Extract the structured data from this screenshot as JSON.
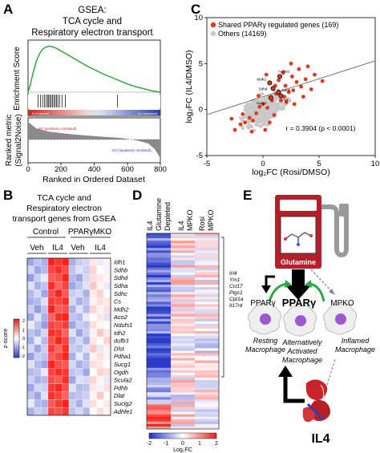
{
  "panels": {
    "A": {
      "letter": "A",
      "title_lines": [
        "GSEA:",
        "TCA cycle and",
        "Respiratory electron transport"
      ],
      "enrichment_ylabel": "Enrichment Score",
      "ranked_ylabel_lines": [
        "Ranked metric",
        "(Signal2Noise)"
      ],
      "xlabel": "Ranked in Ordered Dataset",
      "xticks": [
        "0",
        "200",
        "400",
        "600",
        "800"
      ],
      "bar_left_label": "IL4 induced",
      "bar_right_label": "IL4 repressed",
      "wt_label": "WT (positively correlated)",
      "ko_label": "KO (negatively correlated)"
    },
    "B": {
      "letter": "B",
      "title_lines": [
        "TCA cycle and",
        "Respiratory electron",
        "transport genes from GSEA"
      ],
      "group_control": "Control",
      "group_ko": "PPARγMKO",
      "col_labels": [
        "Veh",
        "IL4",
        "Veh",
        "IL4"
      ],
      "genes": [
        "Idh1",
        "Sdhb",
        "Sdhd",
        "Sdha",
        "Sdhc",
        "Cs",
        "Mdh2",
        "Aco2",
        "Ndufs1",
        "Idh2",
        "dufb3",
        "Dlst",
        "Pdha1",
        "Sucg1",
        "Ogdh",
        "Scula2",
        "Pdhb",
        "Dlat",
        "Suclg2",
        "Adhfe1"
      ],
      "zscore_label": "z-score",
      "zscore_ticks": [
        "2",
        "1",
        "0",
        "-1",
        "-2"
      ]
    },
    "C": {
      "letter": "C",
      "xlabel": "log₂FC (Rosi/DMSO)",
      "ylabel": "log₂FC (IL4/DMSO)",
      "legend_shared": "Shared PPARγ regulated genes (169)",
      "legend_others": "Others (14169)",
      "annotation": "r = 0.3904 (p < 0.0001)",
      "gene_labels": [
        "Adhfe1",
        "Mdh2",
        "Sdhd",
        "Sdhb",
        "Sucg1",
        "Idh1"
      ],
      "xticks": [
        "-5",
        "0",
        "5",
        "10"
      ],
      "yticks": [
        "-5",
        "0",
        "5",
        "10"
      ]
    },
    "D": {
      "letter": "D",
      "col_labels": [
        [
          "IL4",
          "Glutamine",
          "Depleted"
        ],
        [
          "IL4",
          "MPKO"
        ],
        [
          "Rosi",
          "MPKO"
        ]
      ],
      "genes": [
        "Irf4",
        "Ym1",
        "Ccl17",
        "Ptgs1",
        "Cpt1a",
        "Il17rd"
      ],
      "colorbar_ticks": [
        "-2",
        "-1",
        "0",
        "1",
        "2"
      ],
      "colorbar_label": "Log₂FC"
    },
    "E": {
      "letter": "E",
      "glutamine_label": "Glutamine",
      "ppar_center": "PPARγ",
      "ppar_left": "PPARγ",
      "mpko": "MPKO",
      "resting_lines": [
        "Resting",
        "Macrophage"
      ],
      "alt_lines": [
        "Alternatively",
        "Activated",
        "Macrophage"
      ],
      "inflamed_lines": [
        "Inflamed",
        "Macrophage"
      ],
      "il4_label": "IL4"
    }
  },
  "chart_data": [
    {
      "type": "line",
      "title": "GSEA: TCA cycle and Respiratory electron transport",
      "xlabel": "Ranked in Ordered Dataset",
      "ylabel": "Enrichment Score",
      "xlim": [
        0,
        800
      ],
      "x": [
        0,
        15,
        30,
        50,
        70,
        90,
        110,
        130,
        150,
        170,
        200,
        250,
        300,
        350,
        400,
        450,
        500,
        550,
        600,
        650,
        700,
        750,
        800
      ],
      "y": [
        0,
        0.12,
        0.28,
        0.45,
        0.56,
        0.63,
        0.66,
        0.67,
        0.66,
        0.64,
        0.6,
        0.53,
        0.46,
        0.39,
        0.33,
        0.27,
        0.22,
        0.17,
        0.12,
        0.08,
        0.05,
        0.02,
        0
      ],
      "hits": [
        60,
        75,
        88,
        100,
        110,
        118,
        125,
        132,
        140,
        148,
        156,
        164,
        172,
        180,
        190,
        205,
        225,
        540
      ]
    },
    {
      "type": "heatmap",
      "title": "TCA cycle and Respiratory electron transport genes from GSEA",
      "groups": [
        "Control",
        "PPARγMKO"
      ],
      "columns": [
        "Veh",
        "Veh",
        "Veh",
        "IL4",
        "IL4",
        "IL4",
        "Veh",
        "Veh",
        "Veh",
        "IL4",
        "IL4",
        "IL4"
      ],
      "rows": [
        "Idh1",
        "Sdhb",
        "Sdhd",
        "Sdha",
        "Sdhc",
        "Cs",
        "Mdh2",
        "Aco2",
        "Ndufs1",
        "Idh2",
        "dufb3",
        "Dlst",
        "Pdha1",
        "Sucg1",
        "Ogdh",
        "Scula2",
        "Pdhb",
        "Dlat",
        "Suclg2",
        "Adhfe1"
      ],
      "values": [
        [
          -0.9,
          -0.6,
          -0.8,
          2.0,
          1.8,
          2.1,
          -0.8,
          -0.5,
          -0.4,
          0.2,
          -0.2,
          0.1
        ],
        [
          -0.4,
          -0.9,
          -0.7,
          1.7,
          1.9,
          1.6,
          -0.6,
          -0.3,
          -0.5,
          0.4,
          0.0,
          -0.1
        ],
        [
          -1.0,
          -0.5,
          -0.2,
          1.5,
          1.6,
          2.0,
          -0.7,
          -0.9,
          -0.4,
          0.3,
          0.2,
          0.1
        ],
        [
          -0.3,
          -0.8,
          -0.6,
          1.9,
          1.4,
          1.7,
          -0.9,
          -0.6,
          -0.3,
          0.5,
          0.1,
          -0.2
        ],
        [
          -0.7,
          -0.4,
          -0.9,
          1.6,
          2.0,
          1.5,
          -0.5,
          -0.4,
          -0.8,
          0.2,
          0.4,
          0.0
        ],
        [
          -0.8,
          -0.7,
          -0.3,
          1.8,
          1.7,
          1.9,
          -0.4,
          -0.8,
          -0.6,
          0.1,
          0.3,
          0.2
        ],
        [
          -0.5,
          -1.0,
          -0.6,
          2.1,
          1.5,
          1.6,
          -0.8,
          -0.3,
          -0.7,
          0.4,
          -0.1,
          0.3
        ],
        [
          -0.9,
          -0.3,
          -0.8,
          1.4,
          1.9,
          2.0,
          -0.6,
          -0.7,
          -0.2,
          0.0,
          0.2,
          -0.3
        ],
        [
          -0.2,
          -0.6,
          -1.0,
          1.7,
          1.6,
          1.8,
          -0.9,
          -0.5,
          -0.6,
          0.3,
          0.1,
          0.0
        ],
        [
          -0.6,
          -0.8,
          -0.4,
          1.9,
          1.8,
          1.4,
          -0.3,
          -0.9,
          -0.5,
          -0.1,
          0.5,
          0.2
        ],
        [
          -0.8,
          -0.2,
          -0.7,
          1.6,
          2.1,
          1.7,
          -0.7,
          -0.4,
          -0.8,
          0.2,
          0.0,
          0.4
        ],
        [
          -0.4,
          -0.9,
          -0.5,
          1.8,
          1.4,
          1.9,
          -0.5,
          -0.6,
          -0.3,
          0.5,
          -0.2,
          0.1
        ],
        [
          -1.0,
          -0.5,
          -0.6,
          1.5,
          1.7,
          2.0,
          -0.8,
          -0.2,
          -0.7,
          0.1,
          0.3,
          -0.1
        ],
        [
          -0.3,
          -0.7,
          -0.9,
          2.0,
          1.6,
          1.5,
          -0.4,
          -0.8,
          -0.6,
          0.3,
          0.2,
          0.0
        ],
        [
          -0.7,
          -0.6,
          -0.2,
          1.7,
          1.9,
          1.8,
          -0.6,
          -0.5,
          -0.9,
          0.0,
          0.4,
          0.3
        ],
        [
          -0.5,
          -0.8,
          -0.7,
          1.6,
          1.5,
          1.9,
          -0.9,
          -0.3,
          -0.4,
          0.4,
          0.1,
          -0.2
        ],
        [
          -0.9,
          -0.4,
          -0.5,
          1.8,
          2.0,
          1.6,
          -0.3,
          -0.7,
          -0.6,
          0.2,
          -0.1,
          0.3
        ],
        [
          -0.6,
          -0.9,
          -0.3,
          1.9,
          1.7,
          1.4,
          -0.7,
          -0.6,
          -0.5,
          0.1,
          0.5,
          0.0
        ],
        [
          -0.2,
          -0.7,
          -0.8,
          1.5,
          1.8,
          2.0,
          -0.5,
          -0.8,
          -0.3,
          0.3,
          0.0,
          0.2
        ],
        [
          -0.8,
          -0.5,
          -0.6,
          1.7,
          1.6,
          1.8,
          -0.6,
          -0.4,
          -0.7,
          0.0,
          0.3,
          0.1
        ]
      ],
      "zlim": [
        -2,
        2
      ]
    },
    {
      "type": "scatter",
      "xlabel": "log₂FC (Rosi/DMSO)",
      "ylabel": "log₂FC (IL4/DMSO)",
      "xlim": [
        -5,
        10
      ],
      "ylim": [
        -5,
        10
      ],
      "series": [
        {
          "name": "Shared PPARγ regulated genes (169)",
          "color": "#e03a1e",
          "points": [
            [
              -2.5,
              -2.2
            ],
            [
              -2.0,
              -1.6
            ],
            [
              -1.6,
              -1.4
            ],
            [
              -1.2,
              -0.9
            ],
            [
              -0.9,
              -1.2
            ],
            [
              -0.6,
              -0.4
            ],
            [
              -0.3,
              0.3
            ],
            [
              0.0,
              0.6
            ],
            [
              0.4,
              0.2
            ],
            [
              0.8,
              1.0
            ],
            [
              1.2,
              1.7
            ],
            [
              1.6,
              1.0
            ],
            [
              2.0,
              2.6
            ],
            [
              2.3,
              1.9
            ],
            [
              2.7,
              2.1
            ],
            [
              3.0,
              3.0
            ],
            [
              3.4,
              2.5
            ],
            [
              3.8,
              3.3
            ],
            [
              4.3,
              2.2
            ],
            [
              4.6,
              3.8
            ],
            [
              5.3,
              3.1
            ],
            [
              2.1,
              0.8
            ],
            [
              1.0,
              -0.6
            ],
            [
              0.6,
              -1.4
            ],
            [
              -1.0,
              -2.4
            ],
            [
              -1.8,
              -0.5
            ],
            [
              1.4,
              3.2
            ],
            [
              1.8,
              4.0
            ],
            [
              2.5,
              5.0
            ],
            [
              3.2,
              4.4
            ],
            [
              0.3,
              3.8
            ],
            [
              -0.4,
              1.5
            ],
            [
              2.8,
              0.6
            ],
            [
              3.6,
              1.4
            ],
            [
              4.0,
              4.7
            ],
            [
              1.1,
              2.6
            ],
            [
              0.2,
              -2.2
            ],
            [
              -2.8,
              -1.0
            ],
            [
              2.6,
              3.6
            ],
            [
              1.9,
              1.4
            ]
          ]
        },
        {
          "name": "Others (14169)",
          "color": "#c9c9c9"
        }
      ],
      "fit_line": {
        "x": [
          -5,
          10
        ],
        "y": [
          -0.55,
          5.3
        ]
      },
      "highlighted": [
        {
          "label": "Adhfe1",
          "x": 1.5,
          "y": 3.6
        },
        {
          "label": "Mdh2",
          "x": 0.6,
          "y": 2.9
        },
        {
          "label": "Sdhd",
          "x": 0.9,
          "y": 2.3
        },
        {
          "label": "Sdhb",
          "x": 1.4,
          "y": 1.9
        },
        {
          "label": "Sucg1",
          "x": 0.7,
          "y": 1.3
        },
        {
          "label": "Idh1",
          "x": 1.6,
          "y": 1.5
        }
      ],
      "annotation": "r = 0.3904 (p < 0.0001)"
    },
    {
      "type": "heatmap",
      "columns": [
        "IL4 Glutamine Depleted",
        "IL4 MPKO",
        "Rosi MPKO"
      ],
      "row_blocks": [
        {
          "rows": 62,
          "col_values": [
            -1.5,
            0.2,
            0.0
          ]
        },
        {
          "rows": 8,
          "col_values": [
            -0.6,
            0.0,
            0.3
          ]
        },
        {
          "rows": 10,
          "col_values": [
            1.6,
            0.2,
            0.1
          ]
        }
      ],
      "annotated_genes": [
        "Irf4",
        "Ym1",
        "Ccl17",
        "Ptgs1",
        "Cpt1a",
        "Il17rd"
      ],
      "zlim": [
        -2,
        2
      ]
    }
  ]
}
